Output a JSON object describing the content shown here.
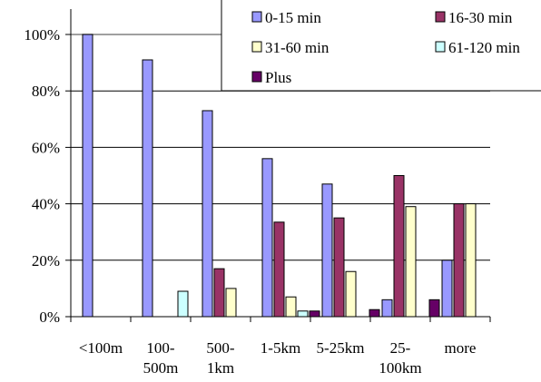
{
  "chart_data": {
    "type": "bar",
    "categories": [
      "<100m",
      "100-500m",
      "500-1km",
      "1-5km",
      "5-25km",
      "25-100km",
      "more"
    ],
    "category_lines": [
      [
        "<100m"
      ],
      [
        "100-",
        "500m"
      ],
      [
        "500-",
        "1km"
      ],
      [
        "1-5km"
      ],
      [
        "5-25km"
      ],
      [
        "25-",
        "100km"
      ],
      [
        "more"
      ]
    ],
    "series": [
      {
        "name": "0-15 min",
        "color": "#9999ff",
        "values": [
          100,
          91,
          73,
          56,
          47,
          6,
          20
        ]
      },
      {
        "name": "16-30 min",
        "color": "#993366",
        "values": [
          0,
          0,
          17,
          33.5,
          35,
          50,
          40
        ]
      },
      {
        "name": "31-60 min",
        "color": "#ffffcc",
        "values": [
          0,
          0,
          10,
          7,
          16,
          39,
          40
        ]
      },
      {
        "name": "61-120 min",
        "color": "#ccffff",
        "values": [
          0,
          9,
          0,
          2,
          0,
          0,
          0
        ]
      },
      {
        "name": "Plus",
        "color": "#660066",
        "values": [
          0,
          0,
          0,
          2,
          2.5,
          6,
          0
        ]
      }
    ],
    "y_ticks": [
      "0%",
      "20%",
      "40%",
      "60%",
      "80%",
      "100%"
    ],
    "ylim": [
      0,
      100
    ],
    "grid": true,
    "legend_position": "top-right",
    "title": "",
    "xlabel": "",
    "ylabel": ""
  }
}
